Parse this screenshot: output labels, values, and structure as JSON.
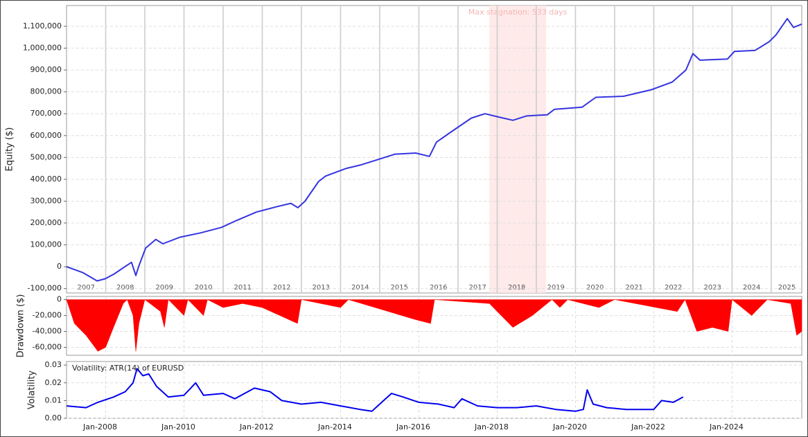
{
  "chart_data": [
    {
      "type": "line",
      "ylabel": "Equity ($)",
      "xlim": [
        2007.0,
        2025.78
      ],
      "ylim": [
        -120000,
        1195000
      ],
      "x_grid_style": "solid",
      "xticks": [
        2008,
        2009,
        2010,
        2011,
        2012,
        2013,
        2014,
        2015,
        2016,
        2017,
        2018,
        2019,
        2020,
        2021,
        2022,
        2023,
        2024,
        2025
      ],
      "year_labels": [
        {
          "value": 2007.5,
          "label": "2007"
        },
        {
          "value": 2008.5,
          "label": "2008"
        },
        {
          "value": 2009.5,
          "label": "2009"
        },
        {
          "value": 2010.5,
          "label": "2010"
        },
        {
          "value": 2011.5,
          "label": "2011"
        },
        {
          "value": 2012.5,
          "label": "2012"
        },
        {
          "value": 2013.5,
          "label": "2013"
        },
        {
          "value": 2014.5,
          "label": "2014"
        },
        {
          "value": 2015.5,
          "label": "2015"
        },
        {
          "value": 2016.5,
          "label": "2016"
        },
        {
          "value": 2017.5,
          "label": "2017"
        },
        {
          "value": 2018.5,
          "label": "2018"
        },
        {
          "value": 2019.5,
          "label": "2019"
        },
        {
          "value": 2020.5,
          "label": "2020"
        },
        {
          "value": 2021.5,
          "label": "2021"
        },
        {
          "value": 2022.5,
          "label": "2022"
        },
        {
          "value": 2023.5,
          "label": "2023"
        },
        {
          "value": 2024.5,
          "label": "2024"
        },
        {
          "value": 2025.4,
          "label": "2025"
        }
      ],
      "yticks": [
        {
          "value": -100000,
          "label": "-100,000"
        },
        0,
        {
          "value": 100000,
          "label": "100,000"
        },
        {
          "value": 200000,
          "label": "200,000"
        },
        {
          "value": 300000,
          "label": "300,000"
        },
        {
          "value": 400000,
          "label": "400,000"
        },
        {
          "value": 500000,
          "label": "500,000"
        },
        {
          "value": 600000,
          "label": "600,000"
        },
        {
          "value": 700000,
          "label": "700,000"
        },
        {
          "value": 800000,
          "label": "800,000"
        },
        {
          "value": 900000,
          "label": "900,000"
        },
        {
          "value": 1000000,
          "label": "1,000,000"
        },
        {
          "value": 1100000,
          "label": "1,100,000"
        }
      ],
      "annotations": [
        {
          "x0": 2017.8,
          "x1": 2019.25,
          "text": "Max stagnation: 533 days"
        }
      ],
      "series": [
        {
          "color": "#3434e0",
          "x": [
            2007.0,
            2007.42,
            2007.78,
            2007.99,
            2008.22,
            2008.49,
            2008.66,
            2008.77,
            2008.84,
            2009.02,
            2009.28,
            2009.46,
            2009.9,
            2010.43,
            2010.96,
            2011.32,
            2011.85,
            2012.38,
            2012.73,
            2012.91,
            2013.09,
            2013.44,
            2013.62,
            2014.15,
            2014.5,
            2014.86,
            2015.39,
            2015.92,
            2016.27,
            2016.45,
            2016.81,
            2017.34,
            2017.69,
            2018.04,
            2018.4,
            2018.75,
            2019.28,
            2019.46,
            2020.17,
            2020.52,
            2021.23,
            2021.94,
            2022.47,
            2022.82,
            2023.0,
            2023.18,
            2023.88,
            2024.06,
            2024.59,
            2024.95,
            2025.12,
            2025.41,
            2025.57,
            2025.78
          ],
          "values": [
            0,
            -27000,
            -65000,
            -55000,
            -33000,
            0,
            20000,
            -40000,
            0,
            85000,
            125000,
            105000,
            135000,
            155000,
            180000,
            210000,
            250000,
            275000,
            290000,
            270000,
            300000,
            390000,
            415000,
            450000,
            465000,
            485000,
            515000,
            520000,
            505000,
            570000,
            615000,
            680000,
            700000,
            685000,
            670000,
            690000,
            695000,
            720000,
            730000,
            775000,
            780000,
            810000,
            845000,
            900000,
            975000,
            945000,
            950000,
            985000,
            990000,
            1030000,
            1060000,
            1135000,
            1095000,
            1110000
          ]
        }
      ]
    },
    {
      "type": "area",
      "ylabel": "Drawdown ($)",
      "xlim": [
        2007.0,
        2025.78
      ],
      "ylim": [
        -70000,
        4000
      ],
      "x_grid_style": "dashed",
      "xticks": [
        2008,
        2010,
        2012,
        2014,
        2016,
        2018,
        2020,
        2022,
        2024
      ],
      "yticks": [
        {
          "value": -60000,
          "label": "-60,000"
        },
        {
          "value": -40000,
          "label": "-40,000"
        },
        {
          "value": -20000,
          "label": "-20,000"
        },
        0
      ],
      "series": [
        {
          "color": "#ff0000",
          "x": [
            2007.0,
            2007.2,
            2007.5,
            2007.8,
            2008.0,
            2008.2,
            2008.45,
            2008.55,
            2008.7,
            2008.77,
            2008.85,
            2009.0,
            2009.4,
            2009.5,
            2009.6,
            2010.0,
            2010.1,
            2010.5,
            2010.6,
            2011.0,
            2011.5,
            2012.0,
            2012.9,
            2013.0,
            2014.0,
            2014.2,
            2015.9,
            2016.3,
            2016.4,
            2017.8,
            2018.4,
            2018.9,
            2019.4,
            2019.6,
            2019.8,
            2020.6,
            2021.0,
            2022.6,
            2022.8,
            2023.1,
            2023.5,
            2023.9,
            2024.0,
            2024.5,
            2024.9,
            2025.5,
            2025.65,
            2025.78
          ],
          "values": [
            0,
            -30000,
            -45000,
            -65000,
            -60000,
            -35000,
            -5000,
            0,
            -20000,
            -65000,
            -30000,
            0,
            -15000,
            -35000,
            0,
            -20000,
            0,
            -20000,
            0,
            -10000,
            -5000,
            -10000,
            -30000,
            0,
            -10000,
            0,
            -25000,
            -30000,
            0,
            -5000,
            -35000,
            -20000,
            0,
            -10000,
            0,
            -10000,
            0,
            -15000,
            0,
            -40000,
            -35000,
            -40000,
            0,
            -20000,
            0,
            -5000,
            -45000,
            -40000
          ]
        }
      ]
    },
    {
      "type": "line",
      "ylabel": "Volatility",
      "xlim": [
        2007.0,
        2025.78
      ],
      "ylim": [
        0,
        0.032
      ],
      "x_grid_style": "dashed",
      "xticks": [
        {
          "value": 2008,
          "label": "Jan-2008"
        },
        {
          "value": 2010,
          "label": "Jan-2010"
        },
        {
          "value": 2012,
          "label": "Jan-2012"
        },
        {
          "value": 2014,
          "label": "Jan-2014"
        },
        {
          "value": 2016,
          "label": "Jan-2016"
        },
        {
          "value": 2018,
          "label": "Jan-2018"
        },
        {
          "value": 2020,
          "label": "Jan-2020"
        },
        {
          "value": 2022,
          "label": "Jan-2022"
        },
        {
          "value": 2024,
          "label": "Jan-2024"
        }
      ],
      "yticks": [
        {
          "value": 0,
          "label": "0.00"
        },
        {
          "value": 0.01,
          "label": "0.01"
        },
        {
          "value": 0.02,
          "label": "0.02"
        },
        {
          "value": 0.03,
          "label": "0.03"
        }
      ],
      "series": [
        {
          "name": "Volatility: ATR(14) of EURUSD",
          "color": "#0000ee",
          "x": [
            2007.0,
            2007.5,
            2007.8,
            2008.2,
            2008.5,
            2008.7,
            2008.8,
            2008.95,
            2009.1,
            2009.3,
            2009.6,
            2010.0,
            2010.3,
            2010.5,
            2011.0,
            2011.3,
            2011.8,
            2012.2,
            2012.5,
            2013.0,
            2013.5,
            2014.0,
            2014.5,
            2014.8,
            2014.9,
            2015.3,
            2015.6,
            2016.0,
            2016.5,
            2016.9,
            2017.1,
            2017.5,
            2018.0,
            2018.5,
            2019.0,
            2019.5,
            2020.0,
            2020.2,
            2020.3,
            2020.45,
            2020.8,
            2021.3,
            2021.8,
            2022.0,
            2022.2,
            2022.5,
            2022.75
          ],
          "values": [
            0.007,
            0.006,
            0.009,
            0.012,
            0.015,
            0.02,
            0.028,
            0.024,
            0.025,
            0.018,
            0.012,
            0.013,
            0.02,
            0.013,
            0.014,
            0.011,
            0.017,
            0.015,
            0.01,
            0.008,
            0.009,
            0.007,
            0.005,
            0.004,
            0.006,
            0.014,
            0.012,
            0.009,
            0.008,
            0.006,
            0.011,
            0.007,
            0.006,
            0.006,
            0.007,
            0.005,
            0.004,
            0.005,
            0.016,
            0.008,
            0.006,
            0.005,
            0.005,
            0.005,
            0.01,
            0.009,
            0.012
          ]
        }
      ]
    }
  ]
}
